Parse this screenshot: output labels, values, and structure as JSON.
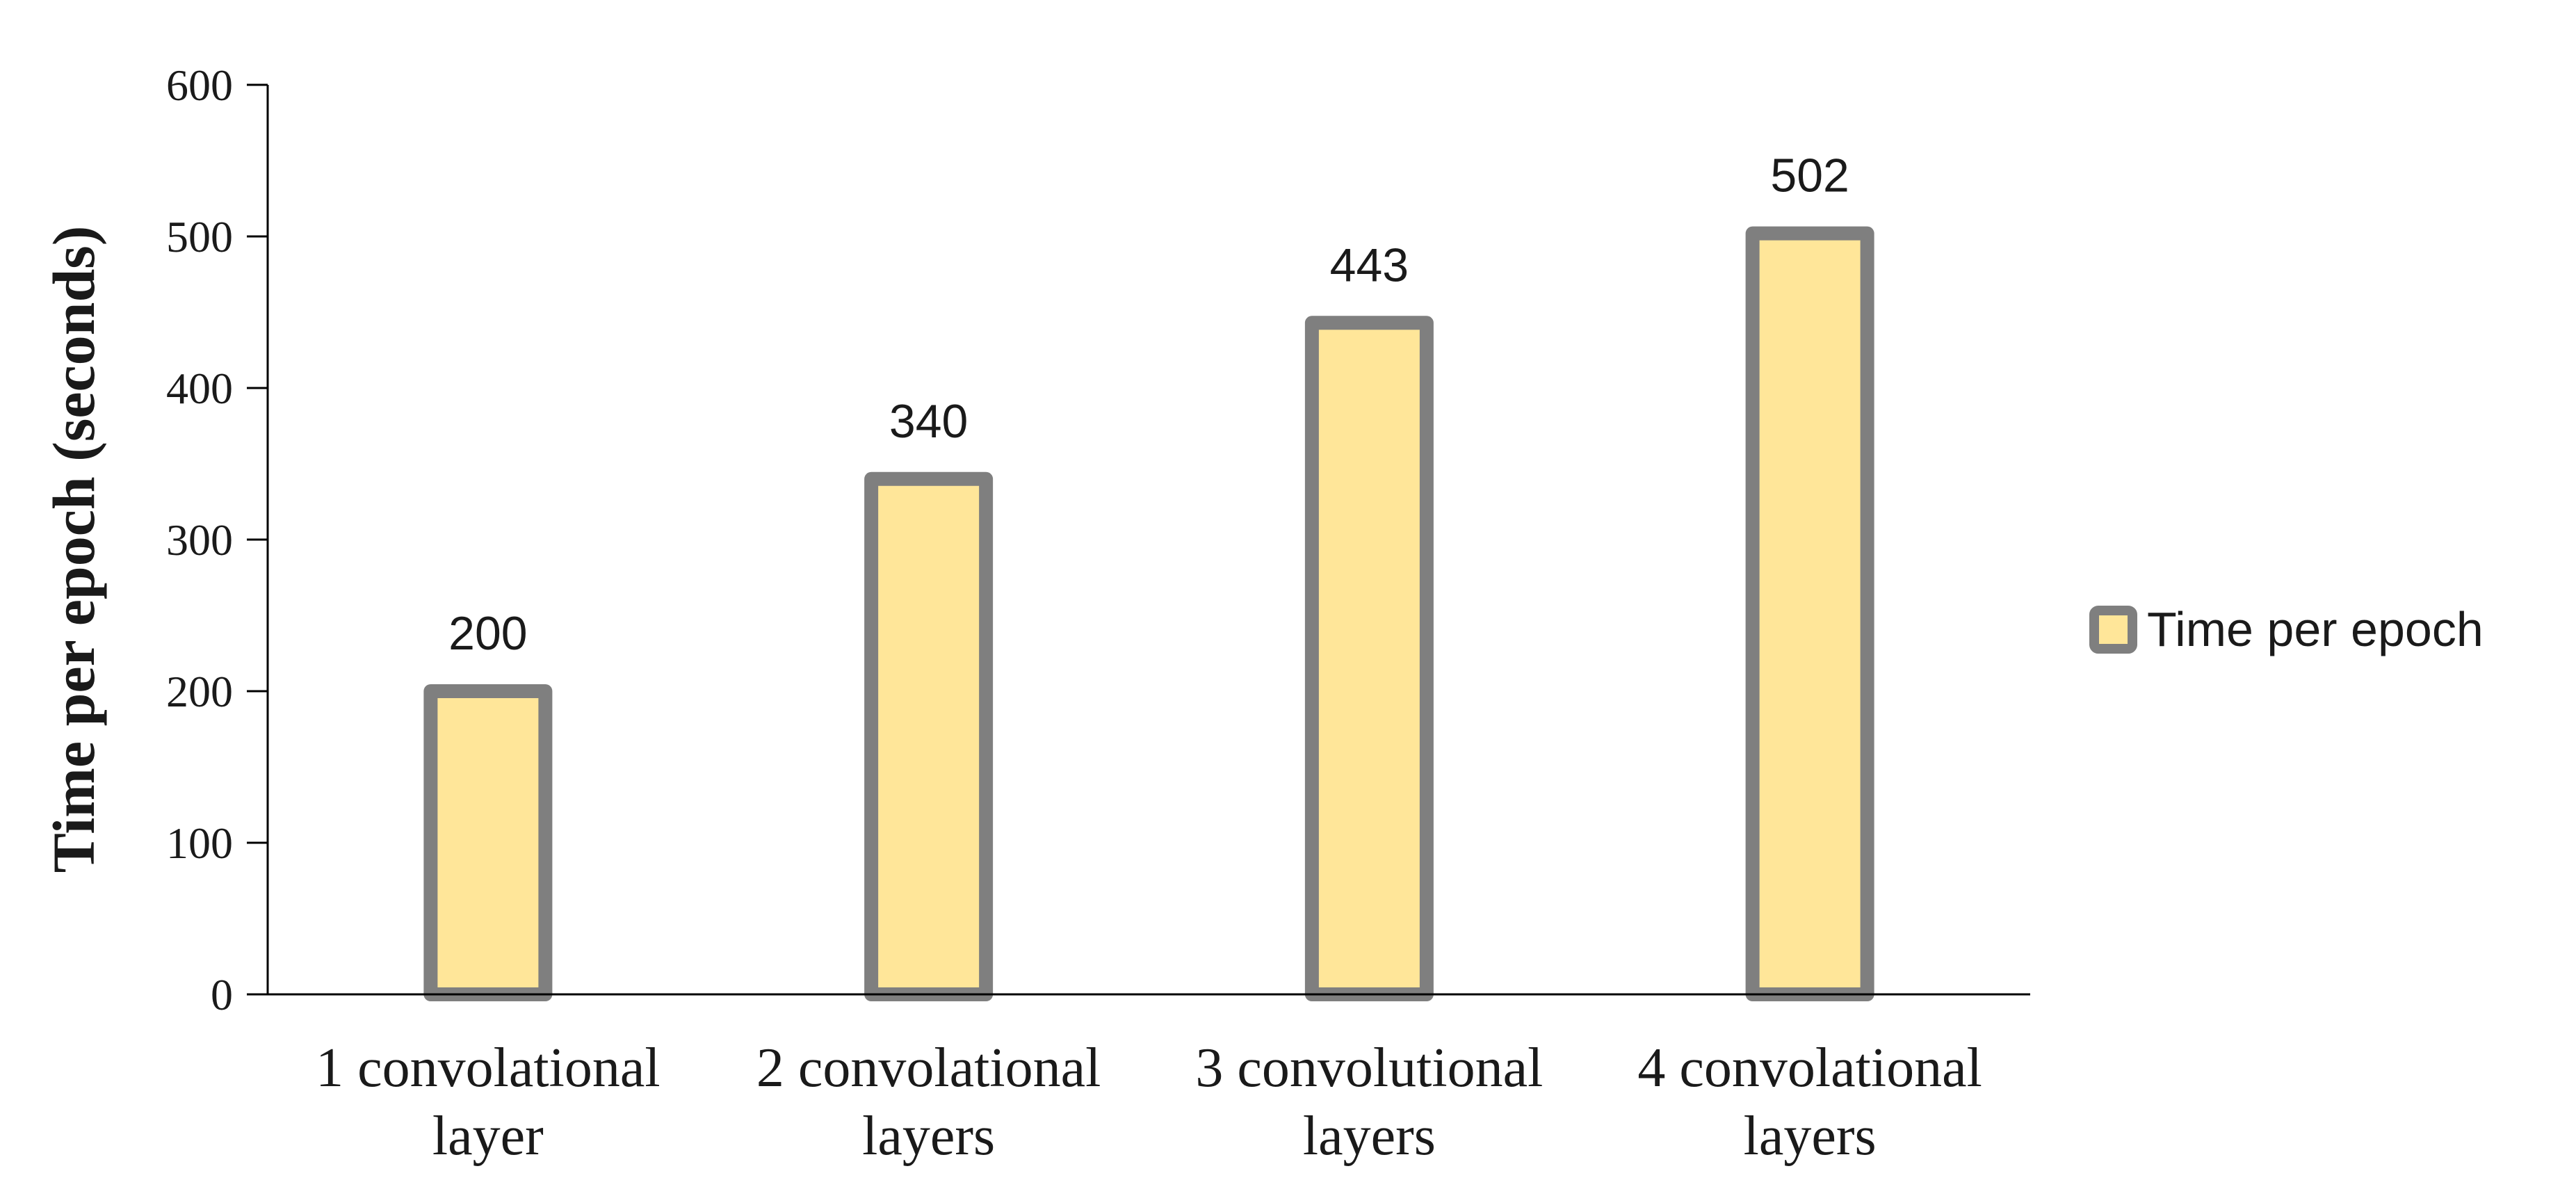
{
  "chart_data": {
    "type": "bar",
    "ylabel": "Time per epoch (seconds)",
    "xlabel": "",
    "ylim": [
      0,
      600
    ],
    "yticks": [
      0,
      100,
      200,
      300,
      400,
      500,
      600
    ],
    "categories": [
      [
        "1 convolational",
        "layer"
      ],
      [
        "2 convolational",
        "layers"
      ],
      [
        "3 convolutional",
        "layers"
      ],
      [
        "4 convolational",
        "layers"
      ]
    ],
    "series": [
      {
        "name": "Time per epoch",
        "values": [
          200,
          340,
          443,
          502
        ]
      }
    ],
    "data_labels": [
      "200",
      "340",
      "443",
      "502"
    ],
    "legend_position": "right",
    "grid": false,
    "colors": {
      "bar_fill": "#FFE699",
      "bar_stroke": "#7F7F7F",
      "axis": "#000000"
    }
  }
}
